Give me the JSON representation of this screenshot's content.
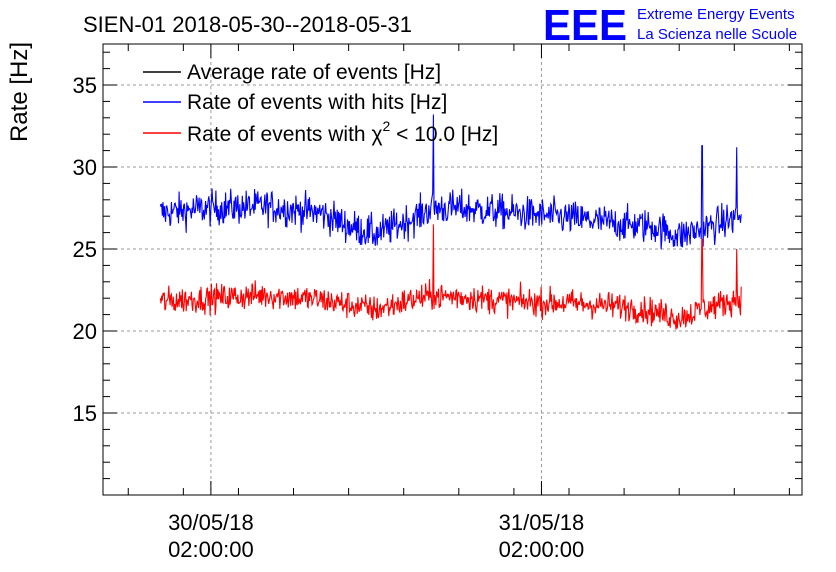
{
  "chart_data": {
    "type": "line",
    "title": "SIEN-01 2018-05-30--2018-05-31",
    "ylabel": "Rate [Hz]",
    "xlabel": "",
    "ylim": [
      10,
      37.5
    ],
    "x_range": [
      "2018-05-29 18:10",
      "2018-05-31 20:55"
    ],
    "data_x_range": [
      "2018-05-29 22:20",
      "2018-05-31 16:30"
    ],
    "y_ticks": [
      15,
      20,
      25,
      30,
      35
    ],
    "x_ticks": [
      {
        "date": "30/05/18",
        "time": "02:00:00"
      },
      {
        "date": "31/05/18",
        "time": "02:00:00"
      }
    ],
    "grid": true,
    "legend_position": "top-left",
    "series": [
      {
        "name": "Average rate of events [Hz]",
        "color": "#000000",
        "values": []
      },
      {
        "name": "Rate of events with hits [Hz]",
        "color": "#0000ff",
        "x": [
          "2018-05-29 22:20",
          "2018-05-30 02:00",
          "2018-05-30 06:00",
          "2018-05-30 10:00",
          "2018-05-30 12:00",
          "2018-05-30 14:00",
          "2018-05-30 17:00",
          "2018-05-30 18:00",
          "2018-05-30 20:00",
          "2018-05-31 00:00",
          "2018-05-31 04:00",
          "2018-05-31 08:00",
          "2018-05-31 10:00",
          "2018-05-31 12:00",
          "2018-05-31 14:00",
          "2018-05-31 16:30"
        ],
        "values": [
          27.2,
          27.5,
          27.6,
          27.2,
          26.4,
          25.9,
          27.0,
          27.5,
          27.5,
          27.2,
          26.9,
          26.5,
          26.4,
          25.8,
          26.3,
          27.0
        ],
        "spikes": [
          {
            "x": "2018-05-30 18:10",
            "y": 33.2
          },
          {
            "x": "2018-05-31 13:40",
            "y": 31.3
          },
          {
            "x": "2018-05-31 16:10",
            "y": 31.2
          }
        ]
      },
      {
        "name": "Rate of events with χ² < 10.0 [Hz]",
        "name_parts": {
          "pre": "Rate of events with ",
          "chi": "χ",
          "sup": "2",
          "post": " < 10.0 [Hz]"
        },
        "color": "#ff0000",
        "x": [
          "2018-05-29 22:20",
          "2018-05-30 02:00",
          "2018-05-30 06:00",
          "2018-05-30 10:00",
          "2018-05-30 12:00",
          "2018-05-30 14:00",
          "2018-05-30 17:00",
          "2018-05-30 18:00",
          "2018-05-30 20:00",
          "2018-05-31 00:00",
          "2018-05-31 04:00",
          "2018-05-31 08:00",
          "2018-05-31 10:00",
          "2018-05-31 12:00",
          "2018-05-31 14:00",
          "2018-05-31 16:30"
        ],
        "values": [
          21.8,
          22.0,
          22.2,
          21.9,
          21.6,
          21.3,
          22.0,
          22.1,
          22.1,
          21.8,
          21.7,
          21.5,
          21.2,
          20.8,
          21.4,
          22.0
        ],
        "spikes": [
          {
            "x": "2018-05-30 18:10",
            "y": 26.5
          },
          {
            "x": "2018-05-31 13:40",
            "y": 25.6
          },
          {
            "x": "2018-05-31 16:10",
            "y": 25.0
          }
        ]
      }
    ]
  },
  "logo": {
    "mark": "EEE",
    "line1": "Extreme Energy Events",
    "line2": "La Scienza nelle Scuole",
    "color": "#0000ff"
  }
}
